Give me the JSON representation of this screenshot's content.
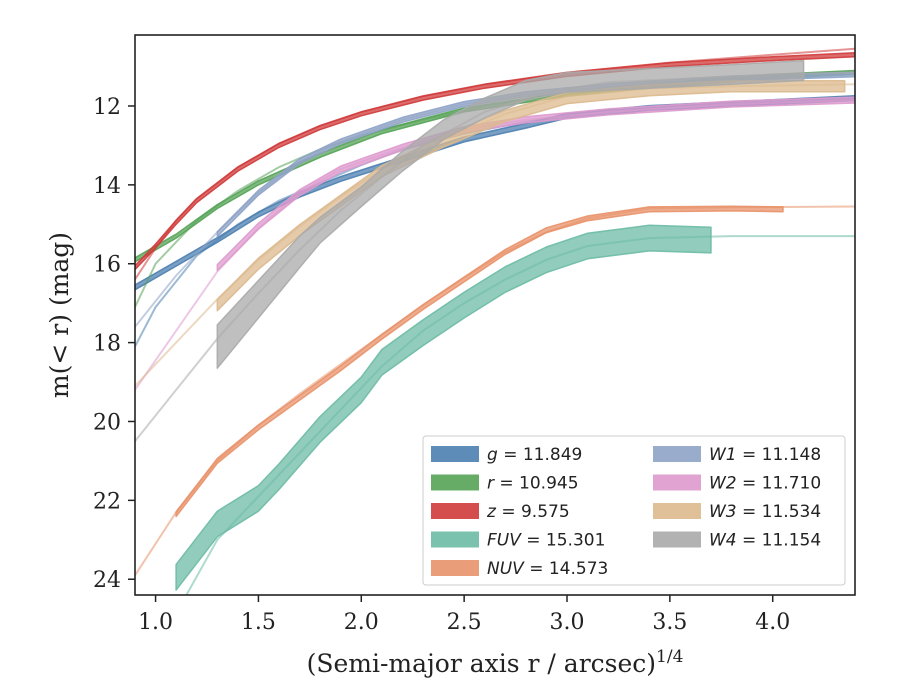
{
  "chart_data": {
    "type": "line",
    "xlabel": "(Semi-major axis r / arcsec)",
    "xlabel_exponent": "1/4",
    "ylabel": "m(< r) (mag)",
    "xlim": [
      0.9,
      4.4
    ],
    "ylim": [
      24.4,
      10.2
    ],
    "y_inverted": true,
    "xticks": [
      "1.0",
      "1.5",
      "2.0",
      "2.5",
      "3.0",
      "3.5",
      "4.0"
    ],
    "xtick_values": [
      1.0,
      1.5,
      2.0,
      2.5,
      3.0,
      3.5,
      4.0
    ],
    "yticks": [
      "12",
      "14",
      "16",
      "18",
      "20",
      "22",
      "24"
    ],
    "ytick_values": [
      12,
      14,
      16,
      18,
      20,
      22,
      24
    ],
    "grid": false,
    "legend_position": "lower-right",
    "legend_columns": 2,
    "series": [
      {
        "name": "g = 11.849",
        "var": "g",
        "value": "11.849",
        "color": "#4c7fb0",
        "model": [
          [
            0.9,
            18.1
          ],
          [
            1.0,
            17.1
          ],
          [
            1.2,
            15.8
          ],
          [
            1.4,
            15.0
          ],
          [
            1.6,
            14.4
          ],
          [
            1.8,
            13.95
          ],
          [
            2.0,
            13.5
          ],
          [
            2.2,
            13.1
          ],
          [
            2.5,
            12.7
          ],
          [
            2.8,
            12.4
          ],
          [
            3.1,
            12.15
          ],
          [
            3.5,
            12.0
          ],
          [
            4.0,
            11.9
          ],
          [
            4.4,
            11.8
          ]
        ],
        "data": [
          [
            0.9,
            16.6
          ],
          [
            1.1,
            16.0
          ],
          [
            1.3,
            15.4
          ],
          [
            1.5,
            14.75
          ],
          [
            1.7,
            14.25
          ],
          [
            1.9,
            13.85
          ],
          [
            2.2,
            13.35
          ],
          [
            2.5,
            12.85
          ],
          [
            2.8,
            12.5
          ],
          [
            3.0,
            12.25
          ],
          [
            3.4,
            12.05
          ],
          [
            4.0,
            11.9
          ],
          [
            4.4,
            11.8
          ]
        ],
        "data_width": 0.12
      },
      {
        "name": "r = 10.945",
        "var": "r",
        "value": "10.945",
        "color": "#55a357",
        "model": [
          [
            0.9,
            17.1
          ],
          [
            1.0,
            16.0
          ],
          [
            1.2,
            14.9
          ],
          [
            1.4,
            14.15
          ],
          [
            1.6,
            13.55
          ],
          [
            1.8,
            13.1
          ],
          [
            2.0,
            12.75
          ],
          [
            2.3,
            12.35
          ],
          [
            2.6,
            12.0
          ],
          [
            3.0,
            11.7
          ],
          [
            3.5,
            11.45
          ],
          [
            4.0,
            11.25
          ],
          [
            4.4,
            11.15
          ]
        ],
        "data": [
          [
            0.9,
            15.9
          ],
          [
            1.1,
            15.3
          ],
          [
            1.3,
            14.55
          ],
          [
            1.5,
            13.95
          ],
          [
            1.8,
            13.25
          ],
          [
            2.1,
            12.65
          ],
          [
            2.5,
            12.1
          ],
          [
            3.0,
            11.7
          ],
          [
            3.5,
            11.45
          ],
          [
            4.0,
            11.25
          ],
          [
            4.4,
            11.15
          ]
        ],
        "data_width": 0.1
      },
      {
        "name": "z = 9.575",
        "var": "z",
        "value": "9.575",
        "color": "#d03b3b",
        "model": [
          [
            0.9,
            16.4
          ],
          [
            1.0,
            15.6
          ],
          [
            1.1,
            14.9
          ],
          [
            1.2,
            14.35
          ],
          [
            1.4,
            13.55
          ],
          [
            1.6,
            12.95
          ],
          [
            1.8,
            12.5
          ],
          [
            2.0,
            12.15
          ],
          [
            2.3,
            11.75
          ],
          [
            2.6,
            11.45
          ],
          [
            3.0,
            11.15
          ],
          [
            3.5,
            10.9
          ],
          [
            4.0,
            10.7
          ],
          [
            4.4,
            10.55
          ]
        ],
        "data": [
          [
            0.9,
            16.1
          ],
          [
            1.0,
            15.55
          ],
          [
            1.1,
            14.95
          ],
          [
            1.2,
            14.4
          ],
          [
            1.4,
            13.6
          ],
          [
            1.6,
            13.0
          ],
          [
            1.8,
            12.55
          ],
          [
            2.0,
            12.2
          ],
          [
            2.3,
            11.8
          ],
          [
            2.6,
            11.5
          ],
          [
            3.0,
            11.2
          ],
          [
            3.5,
            10.95
          ],
          [
            4.0,
            10.8
          ],
          [
            4.4,
            10.7
          ]
        ],
        "data_width": 0.1
      },
      {
        "name": "FUV = 15.301",
        "var": "FUV",
        "value": "15.301",
        "color": "#6cbba5",
        "model": [
          [
            1.15,
            24.4
          ],
          [
            1.3,
            23.0
          ],
          [
            1.5,
            21.9
          ],
          [
            1.7,
            20.8
          ],
          [
            1.9,
            19.7
          ],
          [
            2.1,
            18.6
          ],
          [
            2.3,
            17.7
          ],
          [
            2.5,
            17.0
          ],
          [
            2.7,
            16.4
          ],
          [
            2.9,
            15.9
          ],
          [
            3.1,
            15.55
          ],
          [
            3.4,
            15.35
          ],
          [
            3.8,
            15.3
          ],
          [
            4.4,
            15.3
          ]
        ],
        "data": [
          [
            1.1,
            23.95
          ],
          [
            1.3,
            22.6
          ],
          [
            1.5,
            21.95
          ],
          [
            1.6,
            21.4
          ],
          [
            1.8,
            20.2
          ],
          [
            2.0,
            19.2
          ],
          [
            2.1,
            18.5
          ],
          [
            2.3,
            17.75
          ],
          [
            2.5,
            17.05
          ],
          [
            2.7,
            16.4
          ],
          [
            2.9,
            15.9
          ],
          [
            3.1,
            15.55
          ],
          [
            3.4,
            15.35
          ],
          [
            3.7,
            15.4
          ]
        ],
        "data_width": 0.65
      },
      {
        "name": "NUV = 14.573",
        "var": "NUV",
        "value": "14.573",
        "color": "#e8926a",
        "model": [
          [
            0.9,
            23.9
          ],
          [
            1.1,
            22.3
          ],
          [
            1.3,
            21.0
          ],
          [
            1.5,
            20.1
          ],
          [
            1.7,
            19.3
          ],
          [
            1.9,
            18.55
          ],
          [
            2.1,
            17.8
          ],
          [
            2.3,
            17.05
          ],
          [
            2.5,
            16.35
          ],
          [
            2.7,
            15.7
          ],
          [
            2.9,
            15.2
          ],
          [
            3.1,
            14.85
          ],
          [
            3.4,
            14.6
          ],
          [
            3.8,
            14.57
          ],
          [
            4.4,
            14.55
          ]
        ],
        "data": [
          [
            1.1,
            22.35
          ],
          [
            1.3,
            21.0
          ],
          [
            1.5,
            20.15
          ],
          [
            1.7,
            19.4
          ],
          [
            1.9,
            18.65
          ],
          [
            2.1,
            17.85
          ],
          [
            2.3,
            17.1
          ],
          [
            2.5,
            16.4
          ],
          [
            2.7,
            15.7
          ],
          [
            2.9,
            15.15
          ],
          [
            3.1,
            14.85
          ],
          [
            3.4,
            14.62
          ],
          [
            3.8,
            14.6
          ],
          [
            4.05,
            14.62
          ]
        ],
        "data_width": 0.12
      },
      {
        "name": "W1 = 11.148",
        "var": "W1",
        "value": "11.148",
        "color": "#8fa3c6",
        "model": [
          [
            0.9,
            17.6
          ],
          [
            1.1,
            16.3
          ],
          [
            1.3,
            15.2
          ],
          [
            1.5,
            14.2
          ],
          [
            1.7,
            13.4
          ],
          [
            1.9,
            12.9
          ],
          [
            2.2,
            12.35
          ],
          [
            2.5,
            11.95
          ],
          [
            2.8,
            11.7
          ],
          [
            3.2,
            11.5
          ],
          [
            3.8,
            11.3
          ],
          [
            4.4,
            11.2
          ]
        ],
        "data": [
          [
            1.3,
            15.25
          ],
          [
            1.5,
            14.2
          ],
          [
            1.7,
            13.4
          ],
          [
            1.9,
            12.9
          ],
          [
            2.2,
            12.35
          ],
          [
            2.5,
            11.95
          ],
          [
            2.8,
            11.7
          ],
          [
            3.2,
            11.5
          ],
          [
            3.8,
            11.3
          ],
          [
            4.4,
            11.2
          ]
        ],
        "data_width": 0.12
      },
      {
        "name": "W2 = 11.710",
        "var": "W2",
        "value": "11.710",
        "color": "#de9acd",
        "model": [
          [
            0.9,
            19.2
          ],
          [
            1.1,
            17.7
          ],
          [
            1.3,
            16.2
          ],
          [
            1.5,
            15.1
          ],
          [
            1.7,
            14.2
          ],
          [
            1.9,
            13.6
          ],
          [
            2.2,
            13.05
          ],
          [
            2.5,
            12.6
          ],
          [
            2.8,
            12.35
          ],
          [
            3.2,
            12.15
          ],
          [
            3.8,
            11.95
          ],
          [
            4.4,
            11.85
          ]
        ],
        "data": [
          [
            1.3,
            16.1
          ],
          [
            1.5,
            15.05
          ],
          [
            1.7,
            14.2
          ],
          [
            1.9,
            13.6
          ],
          [
            2.2,
            13.05
          ],
          [
            2.5,
            12.6
          ],
          [
            2.8,
            12.35
          ],
          [
            3.2,
            12.15
          ],
          [
            3.8,
            11.95
          ],
          [
            4.4,
            11.85
          ]
        ],
        "data_width": 0.15
      },
      {
        "name": "W3 = 11.534",
        "var": "W3",
        "value": "11.534",
        "color": "#dcb98e",
        "model": [
          [
            0.9,
            19.1
          ],
          [
            1.1,
            18.0
          ],
          [
            1.3,
            16.9
          ],
          [
            1.5,
            15.9
          ],
          [
            1.7,
            15.05
          ],
          [
            1.9,
            14.3
          ],
          [
            2.1,
            13.6
          ],
          [
            2.4,
            12.85
          ],
          [
            2.7,
            12.2
          ],
          [
            3.0,
            11.75
          ],
          [
            3.4,
            11.55
          ],
          [
            3.8,
            11.5
          ],
          [
            4.4,
            11.45
          ]
        ],
        "data": [
          [
            1.3,
            17.05
          ],
          [
            1.5,
            16.0
          ],
          [
            1.7,
            15.15
          ],
          [
            1.9,
            14.4
          ],
          [
            2.1,
            13.65
          ],
          [
            2.4,
            12.9
          ],
          [
            2.7,
            12.25
          ],
          [
            3.0,
            11.8
          ],
          [
            3.4,
            11.6
          ],
          [
            3.8,
            11.5
          ],
          [
            4.35,
            11.5
          ]
        ],
        "data_width": 0.28
      },
      {
        "name": "W4 = 11.154",
        "var": "W4",
        "value": "11.154",
        "color": "#aaaaaa",
        "model": [
          [
            0.9,
            20.5
          ],
          [
            1.1,
            19.2
          ],
          [
            1.3,
            17.9
          ],
          [
            1.5,
            16.75
          ],
          [
            1.7,
            15.65
          ],
          [
            1.9,
            14.65
          ],
          [
            2.1,
            13.8
          ],
          [
            2.3,
            13.0
          ],
          [
            2.6,
            12.15
          ],
          [
            2.9,
            11.65
          ],
          [
            3.2,
            11.4
          ],
          [
            3.6,
            11.3
          ],
          [
            4.0,
            11.2
          ],
          [
            4.4,
            11.15
          ]
        ],
        "data": [
          [
            1.3,
            18.1
          ],
          [
            1.5,
            16.9
          ],
          [
            1.7,
            15.7
          ],
          [
            1.8,
            15.15
          ],
          [
            2.0,
            14.3
          ],
          [
            2.2,
            13.4
          ],
          [
            2.4,
            12.6
          ],
          [
            2.6,
            12.05
          ],
          [
            2.8,
            11.6
          ],
          [
            3.0,
            11.4
          ],
          [
            3.4,
            11.3
          ],
          [
            3.8,
            11.2
          ],
          [
            4.15,
            11.1
          ]
        ],
        "data_width": 0.5,
        "data_width_start": 1.1
      }
    ]
  }
}
